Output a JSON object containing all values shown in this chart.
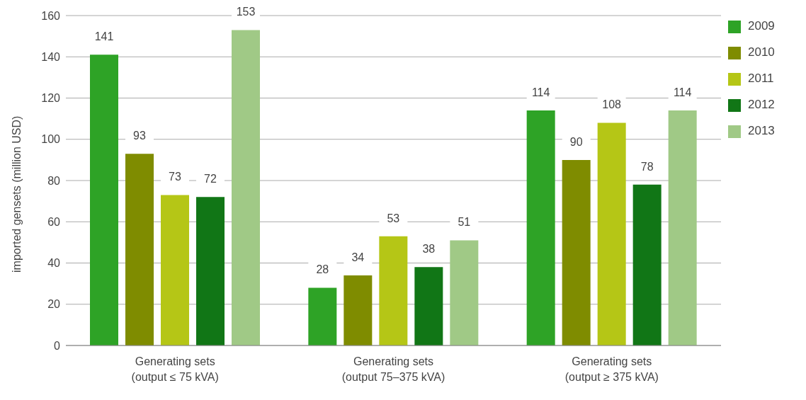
{
  "chart_data": {
    "type": "bar",
    "ylabel": "imported gensets (million USD)",
    "categories": [
      "Generating sets\n(output ≤ 75 kVA)",
      "Generating sets\n(output 75–375 kVA)",
      "Generating sets\n(output ≥ 375 kVA)"
    ],
    "series": [
      {
        "name": "2009",
        "color": "#2ea326",
        "values": [
          141,
          28,
          114
        ]
      },
      {
        "name": "2010",
        "color": "#7f8c00",
        "values": [
          93,
          34,
          90
        ]
      },
      {
        "name": "2011",
        "color": "#b5c616",
        "values": [
          73,
          53,
          108
        ]
      },
      {
        "name": "2012",
        "color": "#117616",
        "values": [
          72,
          38,
          78
        ]
      },
      {
        "name": "2013",
        "color": "#a0c986",
        "values": [
          153,
          51,
          114
        ]
      }
    ],
    "ylim": [
      0,
      160
    ],
    "yticks": [
      0,
      20,
      40,
      60,
      80,
      100,
      120,
      140,
      160
    ],
    "grid": "y",
    "legend": "top right",
    "data_labels": true
  }
}
